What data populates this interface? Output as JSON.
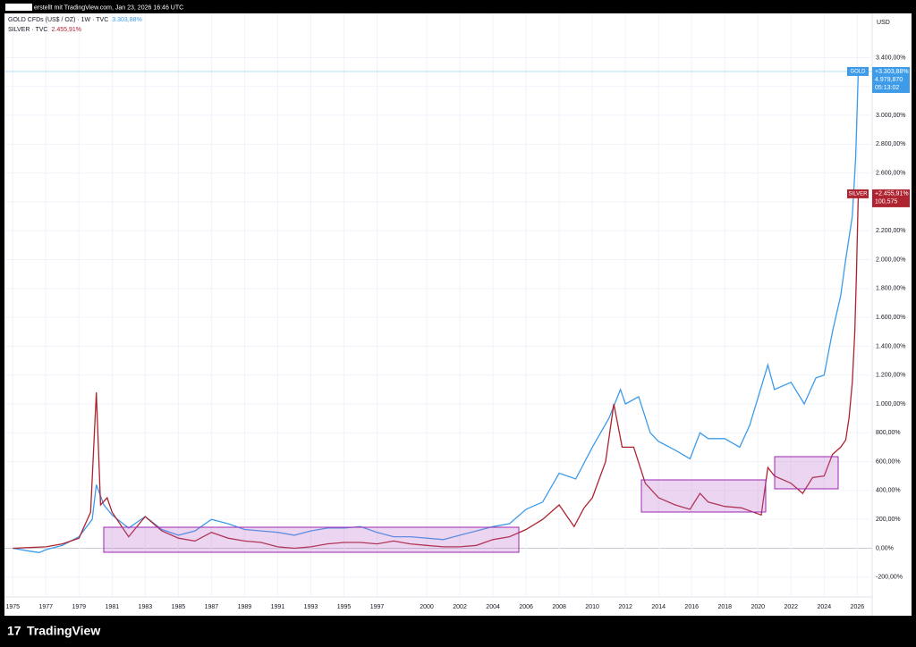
{
  "header": "erstellt mit TradingView.com, Jan 23, 2026 16:46 UTC",
  "footer": "TradingView",
  "chart_data": {
    "type": "line",
    "axis_unit": "USD",
    "xlim": [
      1974.5,
      2026.9
    ],
    "ylim": [
      -350,
      3700
    ],
    "xticks": [
      1975,
      1977,
      1979,
      1981,
      1983,
      1985,
      1987,
      1989,
      1991,
      1993,
      1995,
      1997,
      2000,
      2002,
      2004,
      2006,
      2008,
      2010,
      2012,
      2014,
      2016,
      2018,
      2020,
      2022,
      2024,
      2026
    ],
    "yticks": [
      {
        "value": -200,
        "label": "-200,00%"
      },
      {
        "value": 0,
        "label": "0,00%"
      },
      {
        "value": 200,
        "label": "200,00%"
      },
      {
        "value": 400,
        "label": "400,00%"
      },
      {
        "value": 600,
        "label": "600,00%"
      },
      {
        "value": 800,
        "label": "800,00%"
      },
      {
        "value": 1000,
        "label": "1.000,00%"
      },
      {
        "value": 1200,
        "label": "1.200,00%"
      },
      {
        "value": 1400,
        "label": "1.400,00%"
      },
      {
        "value": 1600,
        "label": "1.600,00%"
      },
      {
        "value": 1800,
        "label": "1.800,00%"
      },
      {
        "value": 2000,
        "label": "2.000,00%"
      },
      {
        "value": 2200,
        "label": "2.200,00%"
      },
      {
        "value": 2400,
        "label": "2.400,00%"
      },
      {
        "value": 2600,
        "label": "2.600,00%"
      },
      {
        "value": 2800,
        "label": "2.800,00%"
      },
      {
        "value": 3000,
        "label": "3.000,00%"
      },
      {
        "value": 3200,
        "label": "3.200,00%"
      },
      {
        "value": 3400,
        "label": "3.400,00%"
      }
    ],
    "grid": true,
    "series": [
      {
        "name": "GOLD",
        "legend": "GOLD CFDs (US$ / OZ) · 1W · TVC",
        "legend_value": "3.303,88%",
        "tag_value": "+3.303,88%",
        "price": "4.979,870",
        "countdown": "05:13:02",
        "color": "#3d9be9",
        "x": [
          1975,
          1976,
          1976.6,
          1977,
          1978,
          1979,
          1979.8,
          1980.05,
          1980.5,
          1981,
          1982,
          1983,
          1984,
          1985,
          1986,
          1987,
          1988,
          1989,
          1990,
          1991,
          1992,
          1993,
          1994,
          1995,
          1996,
          1997,
          1998,
          1999,
          2000,
          2001,
          2002,
          2003,
          2004,
          2005,
          2006,
          2007,
          2008,
          2009,
          2010,
          2011,
          2011.7,
          2012,
          2012.8,
          2013.5,
          2014,
          2015,
          2015.9,
          2016.5,
          2017,
          2018,
          2018.9,
          2019.5,
          2020.6,
          2021,
          2022,
          2022.8,
          2023.5,
          2024,
          2024.5,
          2025,
          2025.3,
          2025.7,
          2025.9,
          2026.06
        ],
        "values": [
          0,
          -20,
          -30,
          -10,
          20,
          80,
          200,
          440,
          300,
          230,
          140,
          220,
          130,
          90,
          120,
          200,
          170,
          130,
          120,
          110,
          90,
          120,
          140,
          140,
          150,
          110,
          80,
          80,
          70,
          60,
          90,
          120,
          150,
          170,
          270,
          320,
          520,
          480,
          700,
          900,
          1100,
          1000,
          1050,
          800,
          740,
          680,
          620,
          800,
          760,
          760,
          700,
          850,
          1270,
          1100,
          1150,
          1000,
          1180,
          1200,
          1500,
          1750,
          2000,
          2300,
          2700,
          3303.88
        ]
      },
      {
        "name": "SILVER",
        "legend": "SILVER · TVC",
        "legend_value": "2.455,91%",
        "tag_value": "+2.455,91%",
        "price": "100,575",
        "color": "#ad2430",
        "x": [
          1975,
          1977,
          1978,
          1979,
          1979.7,
          1980.05,
          1980.3,
          1980.7,
          1981,
          1982,
          1983,
          1984,
          1985,
          1986,
          1987,
          1988,
          1989,
          1990,
          1991,
          1992,
          1993,
          1994,
          1995,
          1996,
          1997,
          1998,
          1999,
          2000,
          2001,
          2002,
          2003,
          2004,
          2005,
          2006,
          2007,
          2008,
          2008.9,
          2009.5,
          2010,
          2010.8,
          2011.3,
          2011.8,
          2012.5,
          2013.2,
          2014,
          2015,
          2015.9,
          2016.5,
          2017,
          2018,
          2019,
          2020.2,
          2020.6,
          2021,
          2022,
          2022.7,
          2023.3,
          2024,
          2024.5,
          2025,
          2025.3,
          2025.5,
          2025.7,
          2025.85,
          2025.95,
          2026.06
        ],
        "values": [
          0,
          10,
          30,
          70,
          250,
          1080,
          300,
          350,
          250,
          80,
          220,
          120,
          70,
          50,
          110,
          70,
          50,
          40,
          10,
          0,
          10,
          30,
          40,
          40,
          30,
          50,
          30,
          20,
          10,
          10,
          20,
          60,
          80,
          130,
          200,
          300,
          150,
          280,
          350,
          600,
          1000,
          700,
          700,
          450,
          350,
          300,
          270,
          380,
          320,
          290,
          280,
          230,
          560,
          500,
          450,
          380,
          490,
          500,
          650,
          700,
          750,
          900,
          1150,
          1500,
          1900,
          2455.91
        ]
      }
    ]
  }
}
